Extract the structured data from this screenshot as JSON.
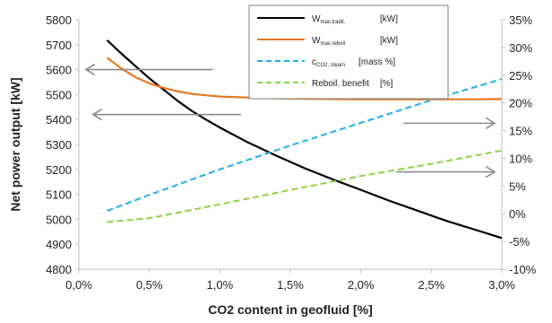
{
  "chart_data": {
    "type": "line",
    "xlabel": "CO2 content in geofluid [%]",
    "ylabel": "Net power output [kW]",
    "x_ticks": [
      "0,0%",
      "0,5%",
      "1,0%",
      "1,5%",
      "2,0%",
      "2,5%",
      "3,0%"
    ],
    "y_ticks": [
      "4800",
      "4900",
      "5000",
      "5100",
      "5200",
      "5300",
      "5400",
      "5500",
      "5600",
      "5700",
      "5800"
    ],
    "y2_ticks": [
      "-10%",
      "-5%",
      "0%",
      "5%",
      "10%",
      "15%",
      "20%",
      "25%",
      "30%",
      "35%"
    ],
    "xlim": [
      0,
      3
    ],
    "ylim": [
      4800,
      5800
    ],
    "y2lim": [
      -10,
      35
    ],
    "grid": false,
    "legend_position": "top-right",
    "series": [
      {
        "name_main": "W",
        "name_sub": "max,tradit.",
        "unit": "[kW]",
        "axis": "left",
        "color": "#000000",
        "dash": "solid",
        "x": [
          0.2,
          0.3,
          0.4,
          0.5,
          0.6,
          0.7,
          0.8,
          0.9,
          1.0,
          1.2,
          1.4,
          1.6,
          1.8,
          2.0,
          2.2,
          2.4,
          2.6,
          2.8,
          3.0
        ],
        "y": [
          5718,
          5665,
          5615,
          5565,
          5520,
          5475,
          5435,
          5400,
          5368,
          5308,
          5255,
          5205,
          5160,
          5118,
          5075,
          5035,
          4995,
          4960,
          4925
        ]
      },
      {
        "name_main": "W",
        "name_sub": "max,reboil",
        "unit": "[kW]",
        "axis": "left",
        "color": "#E87722",
        "dash": "solid",
        "x": [
          0.2,
          0.3,
          0.4,
          0.5,
          0.6,
          0.7,
          0.8,
          0.9,
          1.0,
          1.2,
          1.4,
          1.6,
          1.8,
          2.0,
          2.2,
          2.4,
          2.6,
          2.8,
          3.0
        ],
        "y": [
          5648,
          5605,
          5570,
          5545,
          5527,
          5513,
          5503,
          5497,
          5492,
          5488,
          5485,
          5483,
          5482,
          5481,
          5481,
          5481,
          5481,
          5481,
          5482
        ]
      },
      {
        "name_main": "c",
        "name_sub": "CO2, steam",
        "unit": "[mass %]",
        "axis": "right",
        "color": "#1FAFE6",
        "dash": "dashed",
        "x": [
          0.2,
          0.5,
          1.0,
          1.5,
          2.0,
          2.5,
          3.0
        ],
        "y": [
          0.5,
          3.4,
          8.0,
          12.3,
          16.4,
          20.5,
          24.3
        ]
      },
      {
        "name_main": "Reboil. benefit",
        "name_sub": "",
        "unit": "[%]",
        "axis": "right",
        "color": "#8CD446",
        "dash": "dashed",
        "x": [
          0.2,
          0.5,
          1.0,
          1.5,
          2.0,
          2.5,
          3.0
        ],
        "y": [
          -1.5,
          -0.8,
          1.7,
          4.3,
          6.8,
          9.0,
          11.4
        ]
      }
    ],
    "arrows": [
      {
        "direction": "left",
        "x_from": 0.95,
        "x_to": 0.05,
        "y": 5600
      },
      {
        "direction": "left",
        "x_from": 1.15,
        "x_to": 0.1,
        "y": 5420
      },
      {
        "direction": "right",
        "x_from": 2.3,
        "x_to": 2.95,
        "y": 5385
      },
      {
        "direction": "right",
        "x_from": 2.25,
        "x_to": 2.95,
        "y": 5190
      }
    ]
  }
}
